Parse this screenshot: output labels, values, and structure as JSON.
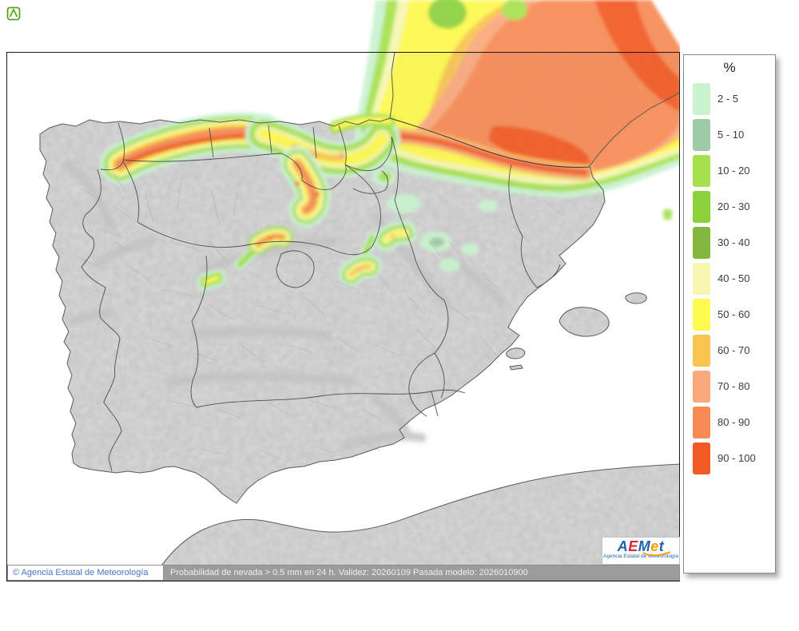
{
  "map": {
    "sea_color": "#ffffff",
    "land_color": "#dcdcdc",
    "frame_color": "#1a1a1a",
    "border_color": "#383838",
    "province_color": "#b0b0b0",
    "coast_color": "#5a5a5a",
    "relief_color": "#c2c2c2"
  },
  "legend": {
    "title": "%",
    "items": [
      {
        "label": "2 - 5",
        "color": "#c9f2cf"
      },
      {
        "label": "5 - 10",
        "color": "#9ecba6"
      },
      {
        "label": "10 - 20",
        "color": "#a6e14d"
      },
      {
        "label": "20 - 30",
        "color": "#8cd13c"
      },
      {
        "label": "30 - 40",
        "color": "#82b63e"
      },
      {
        "label": "40 - 50",
        "color": "#f6f6b0"
      },
      {
        "label": "50 - 60",
        "color": "#fdf94e"
      },
      {
        "label": "60 - 70",
        "color": "#f9c450"
      },
      {
        "label": "70 - 80",
        "color": "#f9a97c"
      },
      {
        "label": "80 - 90",
        "color": "#f78a55"
      },
      {
        "label": "90 - 100",
        "color": "#f15a24"
      }
    ]
  },
  "footer": {
    "copyright": "© Agencia Estatal de Meteorología",
    "caption": "Probabilidad de nevada > 0.5 mm en 24 h. Validez: 20260109 Pasada modelo: 2026010900"
  },
  "branding": {
    "name": "AEMet",
    "subtitle": "Agencia Estatal de Meteorología",
    "letters": [
      {
        "ch": "A",
        "color": "#1b63ad"
      },
      {
        "ch": "E",
        "color": "#d7282f"
      },
      {
        "ch": "M",
        "color": "#1b63ad"
      },
      {
        "ch": "e",
        "color": "#f59c00"
      },
      {
        "ch": "t",
        "color": "#1b63ad"
      }
    ],
    "swoosh_color": "#f59c00",
    "favicon_color": "#5aa31e"
  }
}
